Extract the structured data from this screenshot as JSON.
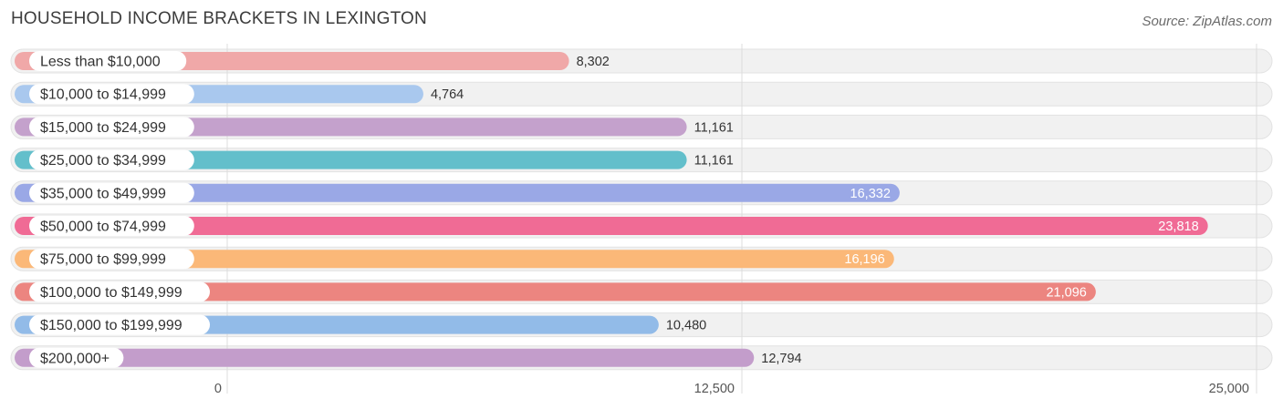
{
  "header": {
    "title": "HOUSEHOLD INCOME BRACKETS IN LEXINGTON",
    "source": "Source: ZipAtlas.com"
  },
  "chart_data": {
    "type": "bar",
    "orientation": "horizontal",
    "categories": [
      "Less than $10,000",
      "$10,000 to $14,999",
      "$15,000 to $24,999",
      "$25,000 to $34,999",
      "$35,000 to $49,999",
      "$50,000 to $74,999",
      "$75,000 to $99,999",
      "$100,000 to $149,999",
      "$150,000 to $199,999",
      "$200,000+"
    ],
    "values": [
      8302,
      4764,
      11161,
      11161,
      16332,
      23818,
      16196,
      21096,
      10480,
      12794
    ],
    "value_labels": [
      "8,302",
      "4,764",
      "11,161",
      "11,161",
      "16,332",
      "23,818",
      "16,196",
      "21,096",
      "10,480",
      "12,794"
    ],
    "colors": [
      "#f0a8a8",
      "#a9c8ee",
      "#c4a1cc",
      "#63bfcb",
      "#9aa8e6",
      "#f06b95",
      "#fbb878",
      "#ec8580",
      "#92bbe8",
      "#c39dcb"
    ],
    "xticks": [
      0,
      12500,
      25000
    ],
    "xtick_labels": [
      "0",
      "12,500",
      "25,000"
    ],
    "xlim": [
      0,
      25000
    ],
    "grid": true
  }
}
